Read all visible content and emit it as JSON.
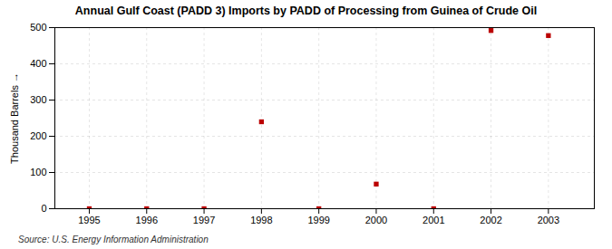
{
  "chart_data": {
    "type": "scatter",
    "title": "Annual Gulf Coast (PADD 3) Imports by PADD of Processing from Guinea of Crude Oil",
    "ylabel": "Thousand Barrels",
    "source": "Source: U.S. Energy Information Administration",
    "x": [
      1995,
      1996,
      1997,
      1998,
      1999,
      2000,
      2001,
      2002,
      2003
    ],
    "values": [
      0,
      0,
      0,
      240,
      0,
      68,
      0,
      492,
      478
    ],
    "color": "#bb0000",
    "marker": "square",
    "xlim": [
      1994.4,
      2003.8
    ],
    "xticks": [
      1995,
      1996,
      1997,
      1998,
      1999,
      2000,
      2001,
      2002,
      2003
    ],
    "ylim": [
      0,
      500
    ],
    "yticks": [
      0,
      100,
      200,
      300,
      400,
      500
    ],
    "grid": true
  }
}
